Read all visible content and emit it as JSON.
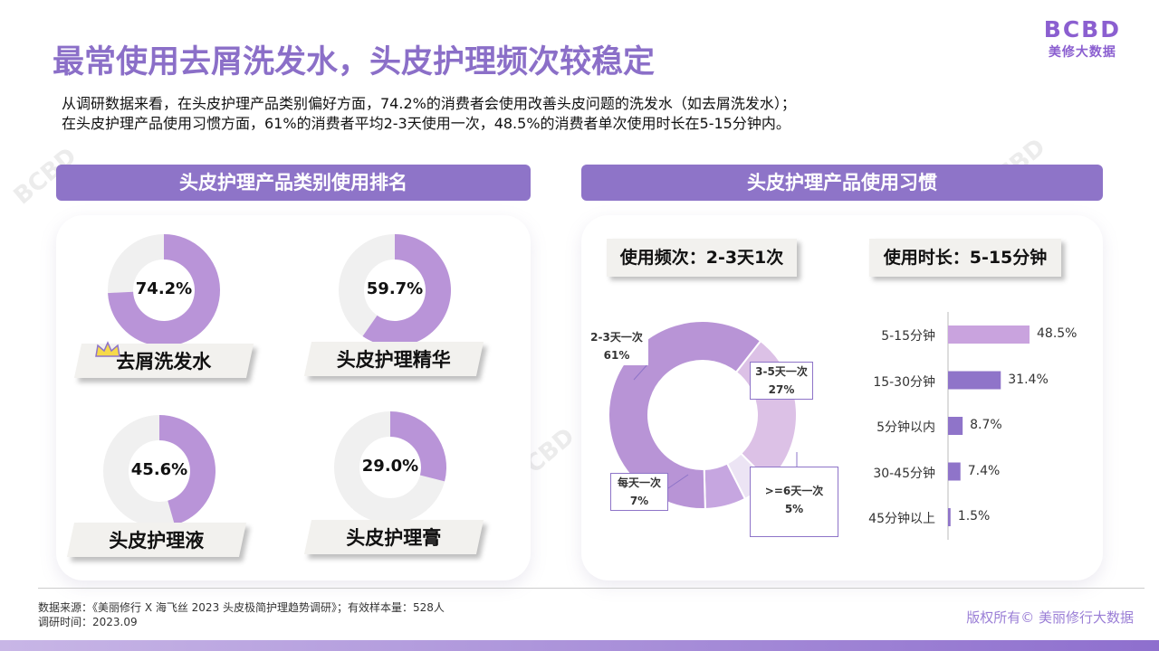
{
  "header": {
    "title": "最常使用去屑洗发水，头皮护理频次较稳定",
    "logo_mark": "BCBD",
    "logo_text": "美修大数据"
  },
  "intro": {
    "line1": "从调研数据来看，在头皮护理产品类别偏好方面，74.2%的消费者会使用改善头皮问题的洗发水（如去屑洗发水）；",
    "line2": "在头皮护理产品使用习惯方面，61%的消费者平均2-3天使用一次，48.5%的消费者单次使用时长在5-15分钟内。"
  },
  "left_panel": {
    "banner": "头皮护理产品类别使用排名"
  },
  "right_panel": {
    "banner": "头皮护理产品使用习惯",
    "freq_tag": "使用频次：2-3天1次",
    "dur_tag": "使用时长：5-15分钟"
  },
  "chart_data": [
    {
      "type": "pie",
      "title": "头皮护理产品类别使用排名",
      "items": [
        {
          "label": "去屑洗发水",
          "value": 74.2,
          "display": "74.2%"
        },
        {
          "label": "头皮护理精华",
          "value": 59.7,
          "display": "59.7%"
        },
        {
          "label": "头皮护理液",
          "value": 45.6,
          "display": "45.6%"
        },
        {
          "label": "头皮护理膏",
          "value": 29.0,
          "display": "29.0%"
        }
      ]
    },
    {
      "type": "pie",
      "title": "使用频次",
      "slices": [
        {
          "label": "2-3天一次",
          "value": 61,
          "display": "61%",
          "color": "#b894d6"
        },
        {
          "label": "3-5天一次",
          "value": 27,
          "display": "27%",
          "color": "#dcc1e6"
        },
        {
          "label": ">=6天一次",
          "value": 5,
          "display": "5%",
          "color": "#ece4f4"
        },
        {
          "label": "每天一次",
          "value": 7,
          "display": "7%",
          "color": "#c6a6e0"
        }
      ]
    },
    {
      "type": "bar",
      "title": "使用时长",
      "categories": [
        "5-15分钟",
        "15-30分钟",
        "5分钟以内",
        "30-45分钟",
        "45分钟以上"
      ],
      "values": [
        48.5,
        31.4,
        8.7,
        7.4,
        1.5
      ],
      "labels": [
        "48.5%",
        "31.4%",
        "8.7%",
        "7.4%",
        "1.5%"
      ],
      "colors": [
        "#c9a3de",
        "#8f74c9",
        "#8f74c9",
        "#8f74c9",
        "#8f74c9"
      ],
      "xlim": [
        0,
        48.5
      ]
    }
  ],
  "footer": {
    "source": "数据来源：《美丽修行 X 海飞丝 2023 头皮极简护理趋势调研》；有效样本量：528人",
    "time": "调研时间：2023.09",
    "copyright": "版权所有© 美丽修行大数据"
  },
  "colors": {
    "accent": "#8e74c8",
    "donut": "#b994d8",
    "donut_track": "#f0f0f0"
  }
}
